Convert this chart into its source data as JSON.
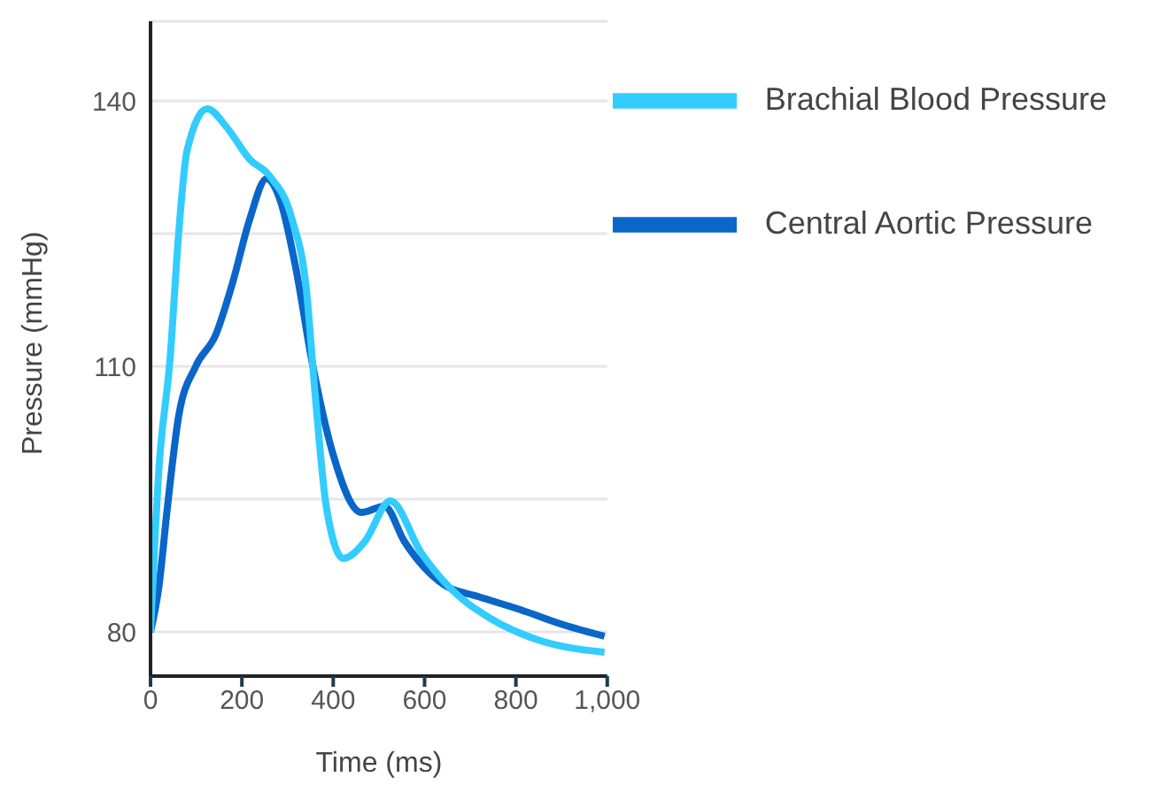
{
  "chart_data": {
    "type": "line",
    "xlabel": "Time (ms)",
    "ylabel": "Pressure (mmHg)",
    "xlim": [
      0,
      1000
    ],
    "xticks": [
      0,
      200,
      400,
      600,
      800,
      {
        "value": 1000,
        "label": "1,000"
      }
    ],
    "ylim": [
      75,
      149
    ],
    "yticks": [
      80,
      {
        "value": 95,
        "label": null
      },
      110,
      {
        "value": 125,
        "label": null
      },
      140
    ],
    "grid": "y",
    "legend": "top right",
    "marker": "none",
    "line_style": "solid",
    "series": [
      {
        "name": "Central Aortic Pressure",
        "color": "#0a66c8",
        "x": [
          0,
          18,
          37,
          62,
          99,
          143,
          180,
          217,
          254,
          285,
          317,
          354,
          400,
          462,
          512,
          556,
          643,
          717,
          810,
          904,
          994
        ],
        "values": [
          80,
          85,
          94.1,
          104.5,
          110,
          113.6,
          119.5,
          126.6,
          131.2,
          128.6,
          121.4,
          110.4,
          100,
          93.5,
          94.2,
          90.2,
          85.3,
          84,
          82.5,
          80.8,
          79.5
        ]
      },
      {
        "name": "Brachial Blood Pressure",
        "color": "#33ccff",
        "x": [
          0,
          18,
          43,
          62,
          80,
          124,
          167,
          217,
          261,
          310,
          341,
          360,
          385,
          422,
          469,
          525,
          593,
          655,
          748,
          842,
          994
        ],
        "values": [
          80,
          98.1,
          111,
          125.3,
          134.4,
          139.1,
          137,
          133.4,
          131.5,
          126.6,
          118.8,
          107.1,
          94.1,
          88.3,
          90.2,
          94.8,
          88.9,
          85,
          81.4,
          79.2,
          77.7
        ]
      }
    ]
  }
}
